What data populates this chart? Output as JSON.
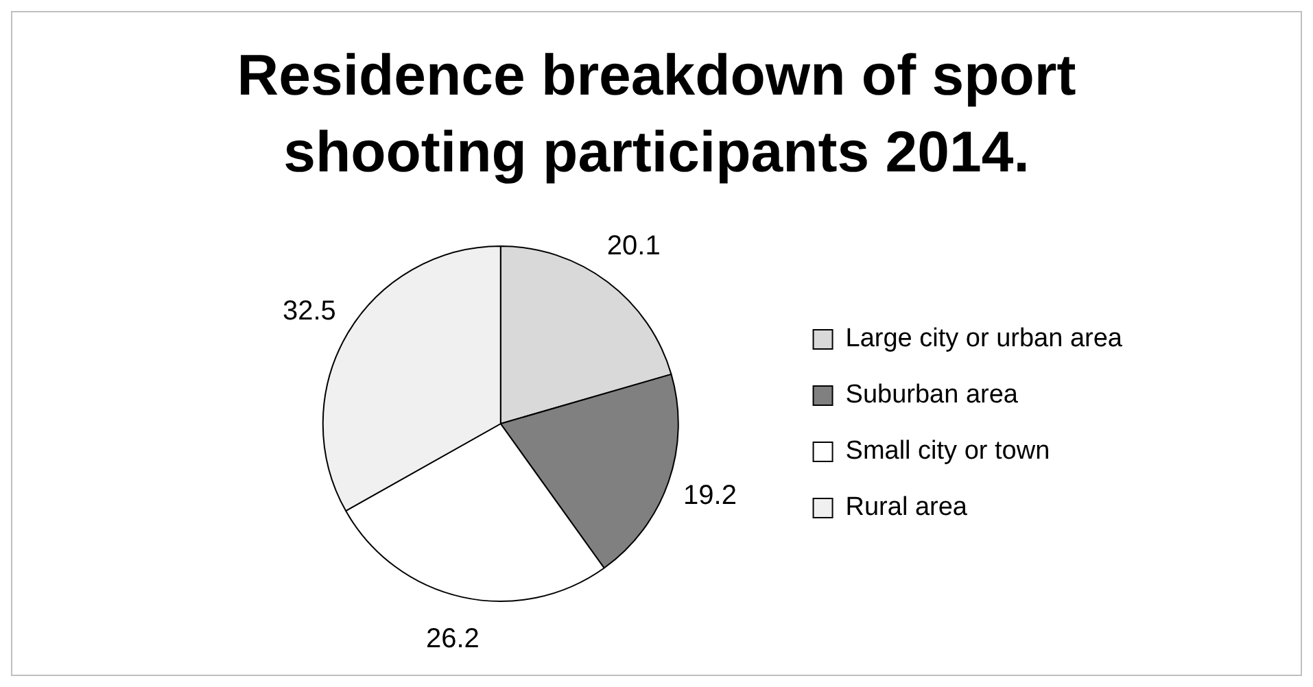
{
  "chart_data": {
    "type": "pie",
    "title": "Residence breakdown of sport shooting participants 2014.",
    "categories": [
      "Large city or urban area",
      "Suburban area",
      "Small city or town",
      "Rural area"
    ],
    "values": [
      20.1,
      19.2,
      26.2,
      32.5
    ],
    "colors": [
      "#d9d9d9",
      "#808080",
      "#ffffff",
      "#f0f0f0"
    ],
    "data_labels": true,
    "legend": "right"
  }
}
